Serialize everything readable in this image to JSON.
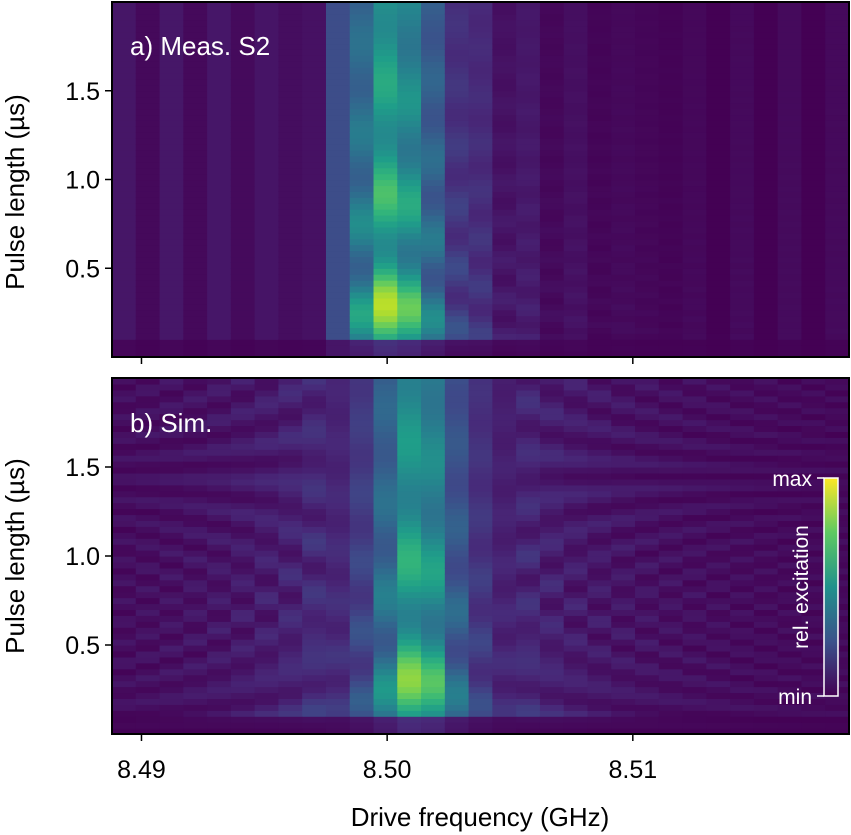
{
  "chart_data": [
    {
      "type": "heatmap",
      "panel_label": "a) Meas. S2",
      "xlabel": "",
      "ylabel": "Pulse length (µs)",
      "xlim": [
        8.4888,
        8.5188
      ],
      "ylim": [
        0.0,
        2.0
      ],
      "x_ticks": [
        8.49,
        8.5,
        8.51
      ],
      "y_ticks": [
        "0.5",
        "1.0",
        "1.5"
      ],
      "y_tick_values": [
        0.5,
        1.0,
        1.5
      ],
      "colormap": "viridis",
      "columns": 31,
      "column_width_ghz": 0.001,
      "excitation_onset_ghz": 8.4985,
      "peak": {
        "x": 8.5001,
        "y": 0.17,
        "level": 1.0
      },
      "notes_visible": "sharp lower-frequency edge, chevron fringes to higher frequency"
    },
    {
      "type": "heatmap",
      "panel_label": "b) Sim.",
      "xlabel": "Drive frequency (GHz)",
      "ylabel": "Pulse length (µs)",
      "xlim": [
        8.4888,
        8.5188
      ],
      "ylim": [
        0.0,
        2.0
      ],
      "x_ticks": [
        "8.49",
        "8.50",
        "8.51"
      ],
      "x_tick_values": [
        8.49,
        8.5,
        8.51
      ],
      "y_ticks": [
        "0.5",
        "1.0",
        "1.5"
      ],
      "y_tick_values": [
        0.5,
        1.0,
        1.5
      ],
      "colormap": "viridis",
      "columns": 31,
      "peak": {
        "x": 8.5012,
        "y": 0.15,
        "level": 1.0
      },
      "colorbar": {
        "label": "rel. excitation",
        "max_label": "max",
        "min_label": "min"
      }
    }
  ],
  "colors": {
    "viridis_low": "#440154",
    "viridis_mid": "#21918c",
    "viridis_high": "#fde725",
    "frame": "#000000",
    "panel_text": "#ffffff"
  }
}
